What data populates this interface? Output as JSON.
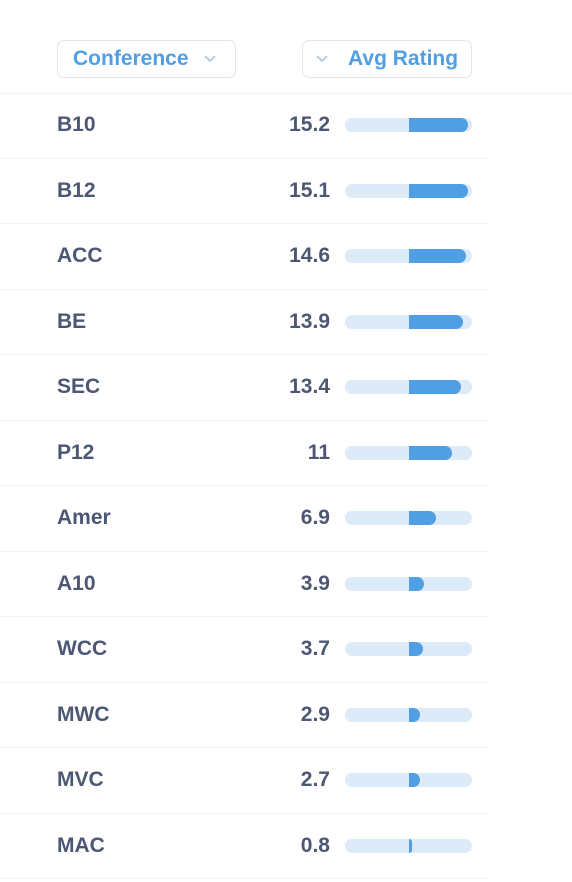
{
  "header": {
    "conference_label": "Conference",
    "rating_label": "Avg Rating"
  },
  "rows": [
    {
      "name": "B10",
      "value": "15.2",
      "fraction": 1.0
    },
    {
      "name": "B12",
      "value": "15.1",
      "fraction": 0.993
    },
    {
      "name": "ACC",
      "value": "14.6",
      "fraction": 0.961
    },
    {
      "name": "BE",
      "value": "13.9",
      "fraction": 0.914
    },
    {
      "name": "SEC",
      "value": "13.4",
      "fraction": 0.882
    },
    {
      "name": "P12",
      "value": "11",
      "fraction": 0.724
    },
    {
      "name": "Amer",
      "value": "6.9",
      "fraction": 0.454
    },
    {
      "name": "A10",
      "value": "3.9",
      "fraction": 0.257
    },
    {
      "name": "WCC",
      "value": "3.7",
      "fraction": 0.243
    },
    {
      "name": "MWC",
      "value": "2.9",
      "fraction": 0.191
    },
    {
      "name": "MVC",
      "value": "2.7",
      "fraction": 0.178
    },
    {
      "name": "MAC",
      "value": "0.8",
      "fraction": 0.053
    }
  ],
  "colors": {
    "accent": "#509ee3",
    "bar_track": "#ddeaf8",
    "text": "#4c5773"
  },
  "icons": {
    "sort_chevron": "chevron-down-icon"
  }
}
